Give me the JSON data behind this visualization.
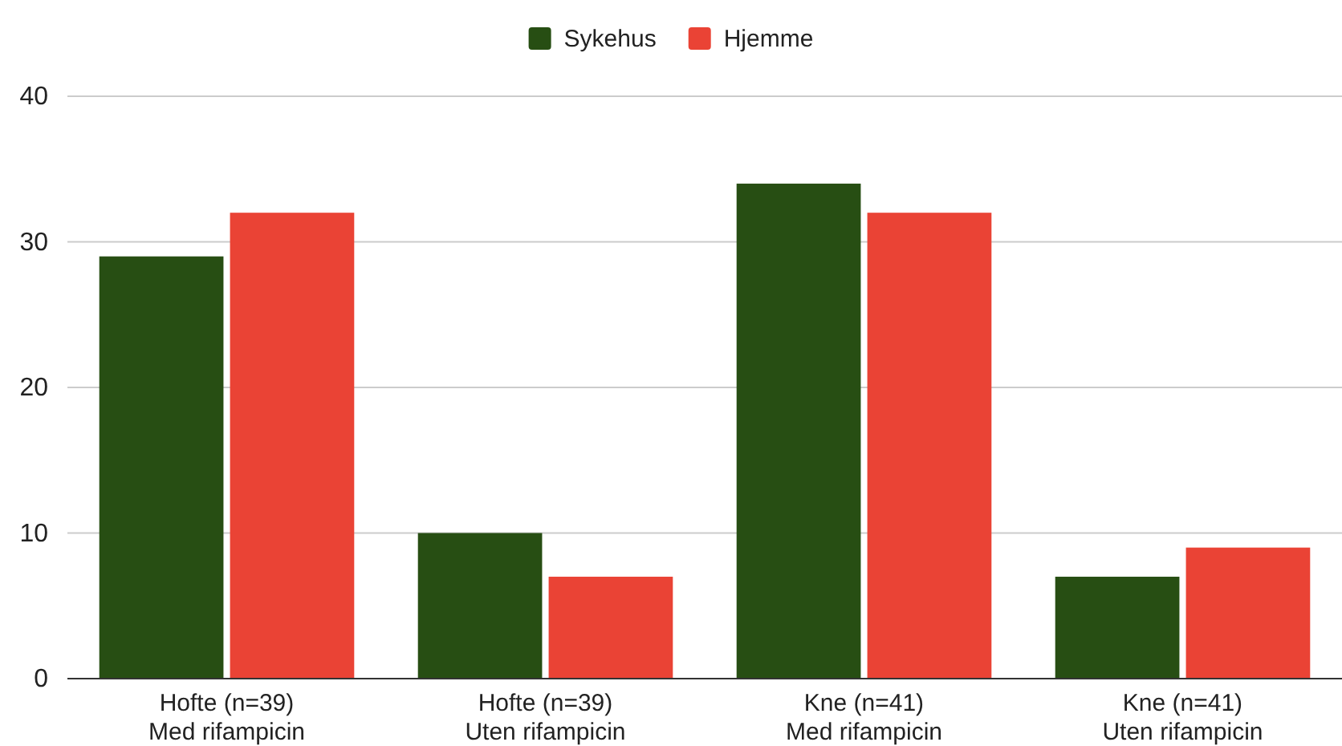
{
  "chart_data": {
    "type": "bar",
    "categories": [
      "Hofte (n=39)\nMed rifampicin",
      "Hofte (n=39)\nUten rifampicin",
      "Kne (n=41)\nMed rifampicin",
      "Kne (n=41)\nUten rifampicin"
    ],
    "series": [
      {
        "name": "Sykehus",
        "color": "#274e13",
        "values": [
          29,
          10,
          34,
          7
        ]
      },
      {
        "name": "Hjemme",
        "color": "#ea4335",
        "values": [
          32,
          7,
          32,
          9
        ]
      }
    ],
    "ylim": [
      0,
      40
    ],
    "yticks": [
      0,
      10,
      20,
      30,
      40
    ],
    "grid": "y",
    "legend": "top"
  }
}
